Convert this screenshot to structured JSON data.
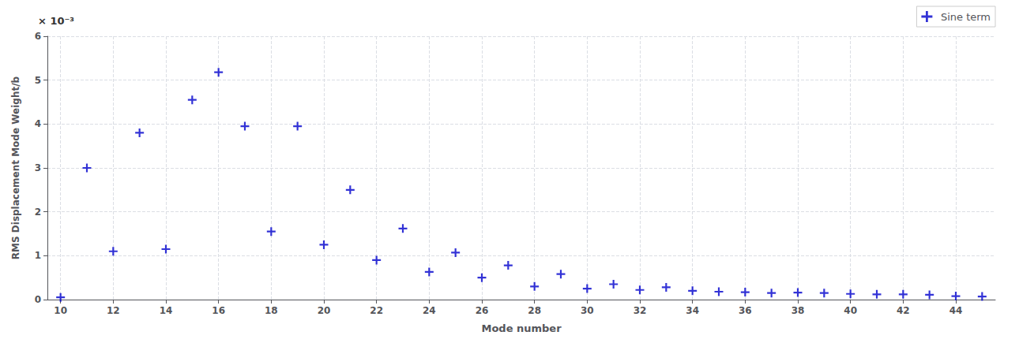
{
  "chart_data": {
    "type": "scatter",
    "x": [
      10,
      11,
      12,
      13,
      14,
      15,
      16,
      17,
      18,
      19,
      20,
      21,
      22,
      23,
      24,
      25,
      26,
      27,
      28,
      29,
      30,
      31,
      32,
      33,
      34,
      35,
      36,
      37,
      38,
      39,
      40,
      41,
      42,
      43,
      44,
      45
    ],
    "series": [
      {
        "name": "Sine term",
        "color": "#0000CC",
        "marker": "plus",
        "values": [
          0.05,
          3.0,
          1.1,
          3.8,
          1.15,
          4.55,
          5.18,
          3.95,
          1.55,
          3.95,
          1.25,
          2.5,
          0.9,
          1.62,
          0.63,
          1.07,
          0.5,
          0.78,
          0.3,
          0.58,
          0.25,
          0.35,
          0.22,
          0.28,
          0.2,
          0.18,
          0.17,
          0.15,
          0.16,
          0.15,
          0.13,
          0.12,
          0.12,
          0.11,
          0.08,
          0.07
        ]
      }
    ],
    "xlabel": "Mode number",
    "ylabel": "RMS Displacement Mode Weight/b",
    "annotation": "× 10⁻³",
    "xlim": [
      9.5,
      45.5
    ],
    "ylim": [
      0,
      6
    ],
    "xticks": [
      10,
      12,
      14,
      16,
      18,
      20,
      22,
      24,
      26,
      28,
      30,
      32,
      34,
      36,
      38,
      40,
      42,
      44
    ],
    "yticks": [
      0,
      1,
      2,
      3,
      4,
      5,
      6
    ],
    "grid": true,
    "legend": "upper right"
  }
}
